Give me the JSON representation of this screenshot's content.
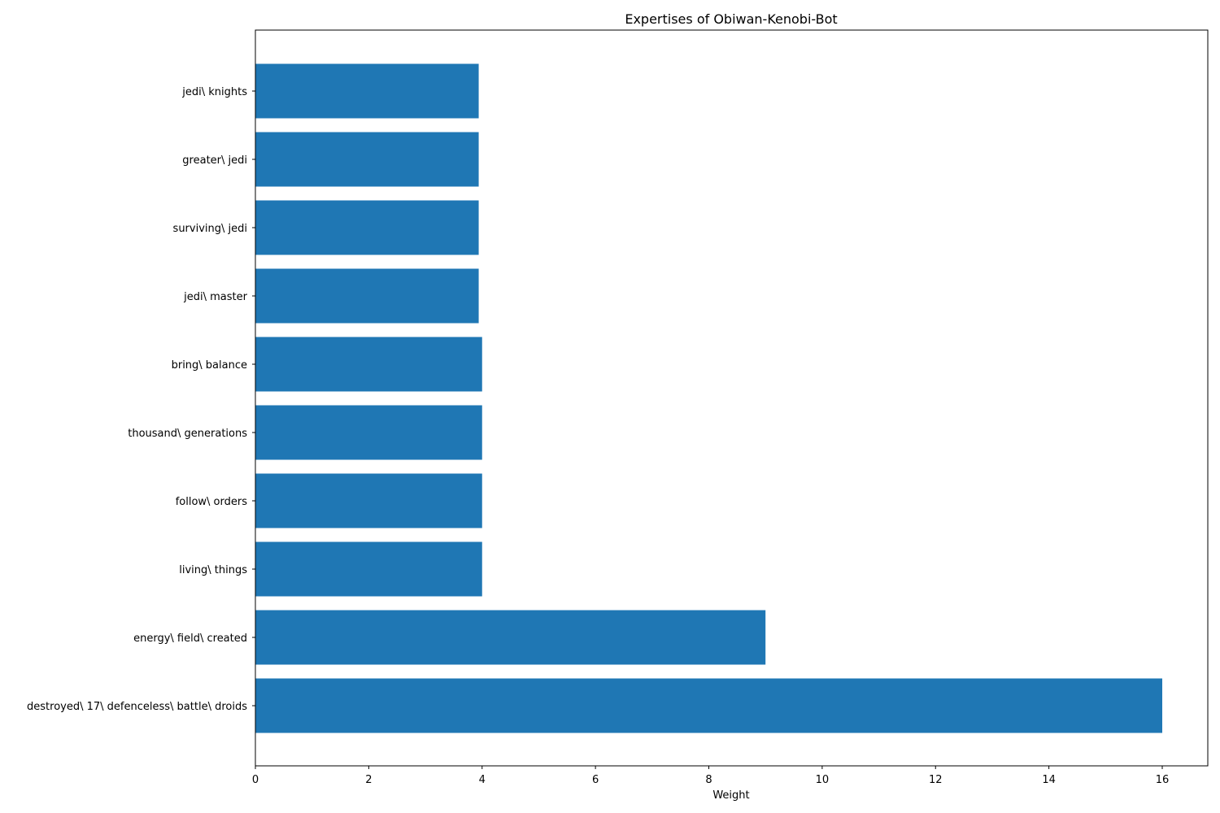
{
  "chart_data": {
    "type": "bar",
    "orientation": "horizontal",
    "title": "Expertises of Obiwan-Kenobi-Bot",
    "xlabel": "Weight",
    "ylabel": "",
    "xlim": [
      0,
      16.8
    ],
    "x_ticks": [
      "0",
      "2",
      "4",
      "6",
      "8",
      "10",
      "12",
      "14",
      "16"
    ],
    "grid": false,
    "bar_color": "#1f77b4",
    "categories": [
      "jedi\\ knights",
      "greater\\ jedi",
      "surviving\\ jedi",
      "jedi\\ master",
      "bring\\ balance",
      "thousand\\ generations",
      "follow\\ orders",
      "living\\ things",
      "energy\\ field\\ created",
      "destroyed\\ 17\\ defenceless\\ battle\\ droids"
    ],
    "values": [
      3.94,
      3.94,
      3.94,
      3.94,
      4,
      4,
      4,
      4,
      9,
      16
    ]
  }
}
